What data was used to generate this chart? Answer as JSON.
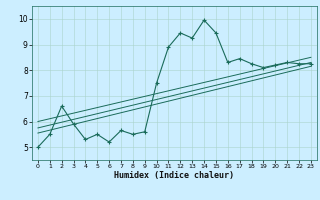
{
  "title": "",
  "xlabel": "Humidex (Indice chaleur)",
  "bg_color": "#cceeff",
  "line_color": "#1a6b5a",
  "xlim": [
    -0.5,
    23.5
  ],
  "ylim": [
    4.5,
    10.5
  ],
  "yticks": [
    5,
    6,
    7,
    8,
    9,
    10
  ],
  "xticks": [
    0,
    1,
    2,
    3,
    4,
    5,
    6,
    7,
    8,
    9,
    10,
    11,
    12,
    13,
    14,
    15,
    16,
    17,
    18,
    19,
    20,
    21,
    22,
    23
  ],
  "main_line_x": [
    0,
    1,
    2,
    3,
    4,
    5,
    6,
    7,
    8,
    9,
    10,
    11,
    12,
    13,
    14,
    15,
    16,
    17,
    18,
    19,
    20,
    21,
    22,
    23
  ],
  "main_line_y": [
    5.0,
    5.5,
    6.6,
    5.9,
    5.3,
    5.5,
    5.2,
    5.65,
    5.5,
    5.6,
    7.5,
    8.9,
    9.45,
    9.25,
    9.95,
    9.45,
    8.3,
    8.45,
    8.25,
    8.1,
    8.2,
    8.3,
    8.25,
    8.25
  ],
  "reg_line1_x": [
    0,
    23
  ],
  "reg_line1_y": [
    5.55,
    8.15
  ],
  "reg_line2_x": [
    0,
    23
  ],
  "reg_line2_y": [
    5.75,
    8.3
  ],
  "reg_line3_x": [
    0,
    23
  ],
  "reg_line3_y": [
    6.0,
    8.5
  ]
}
